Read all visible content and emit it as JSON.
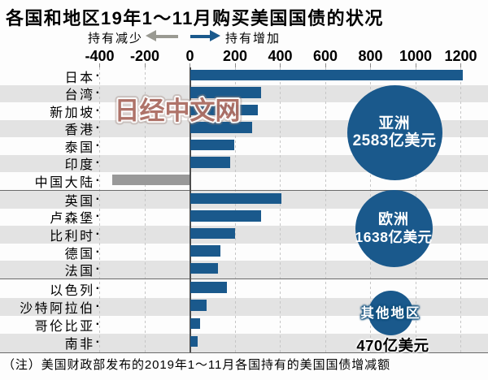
{
  "title": "各国和地区19年1～11月购买美国国债的状况",
  "legend": {
    "decrease_label": "持有减少",
    "increase_label": "持有增加"
  },
  "watermark": "日经中文网",
  "note": "（注）美国财政部发布的2019年1～11月各国持有的美国国债增减额",
  "colors": {
    "bar_increase_blue": "#1a598c",
    "bar_decrease_gray": "#999999",
    "arrow_decrease_gray": "#9a9a92",
    "bubble_blue": "#1a598c",
    "stripe_gray": "#e3e3e3",
    "gridline_gray": "#c6c6c6",
    "zero_line": "#4d4d4d",
    "separator_line": "#6a6a6a",
    "watermark_red": "#a96a60",
    "text_black": "#000000",
    "bubble_text_white": "#ffffff"
  },
  "chart_data": {
    "type": "bar",
    "orientation": "horizontal",
    "unit": "亿美元",
    "label_dot": "·",
    "xlim": [
      -480,
      1320
    ],
    "x_tick_values": [
      -400,
      -200,
      0,
      200,
      400,
      600,
      800,
      1000,
      1200
    ],
    "x_tick_labels": [
      "-400",
      "-200",
      "0",
      "200",
      "400",
      "600",
      "800",
      "1000",
      "1200"
    ],
    "grid": "dashed-vertical",
    "legend_position": "top",
    "groups": [
      {
        "region": "亚洲",
        "bubble": {
          "label": "亚洲",
          "value": 2583,
          "value_label": "2583亿美元"
        },
        "rows": [
          {
            "label": "日本",
            "value": 1210
          },
          {
            "label": "台湾",
            "value": 315
          },
          {
            "label": "新加坡",
            "value": 300
          },
          {
            "label": "香港",
            "value": 275
          },
          {
            "label": "泰国",
            "value": 195
          },
          {
            "label": "印度",
            "value": 180
          },
          {
            "label": "中国大陆",
            "value": -345
          }
        ]
      },
      {
        "region": "欧洲",
        "bubble": {
          "label": "欧洲",
          "value": 1638,
          "value_label": "1638亿美元"
        },
        "rows": [
          {
            "label": "英国",
            "value": 405
          },
          {
            "label": "卢森堡",
            "value": 315
          },
          {
            "label": "比利时",
            "value": 200
          },
          {
            "label": "德国",
            "value": 135
          },
          {
            "label": "法国",
            "value": 125
          }
        ]
      },
      {
        "region": "其他地区",
        "bubble": {
          "label": "其他地区",
          "value": 470,
          "value_label": "470亿美元"
        },
        "rows": [
          {
            "label": "以色列",
            "value": 165
          },
          {
            "label": "沙特阿拉伯",
            "value": 75
          },
          {
            "label": "哥伦比亚",
            "value": 45
          },
          {
            "label": "南非",
            "value": 35
          }
        ]
      }
    ]
  }
}
